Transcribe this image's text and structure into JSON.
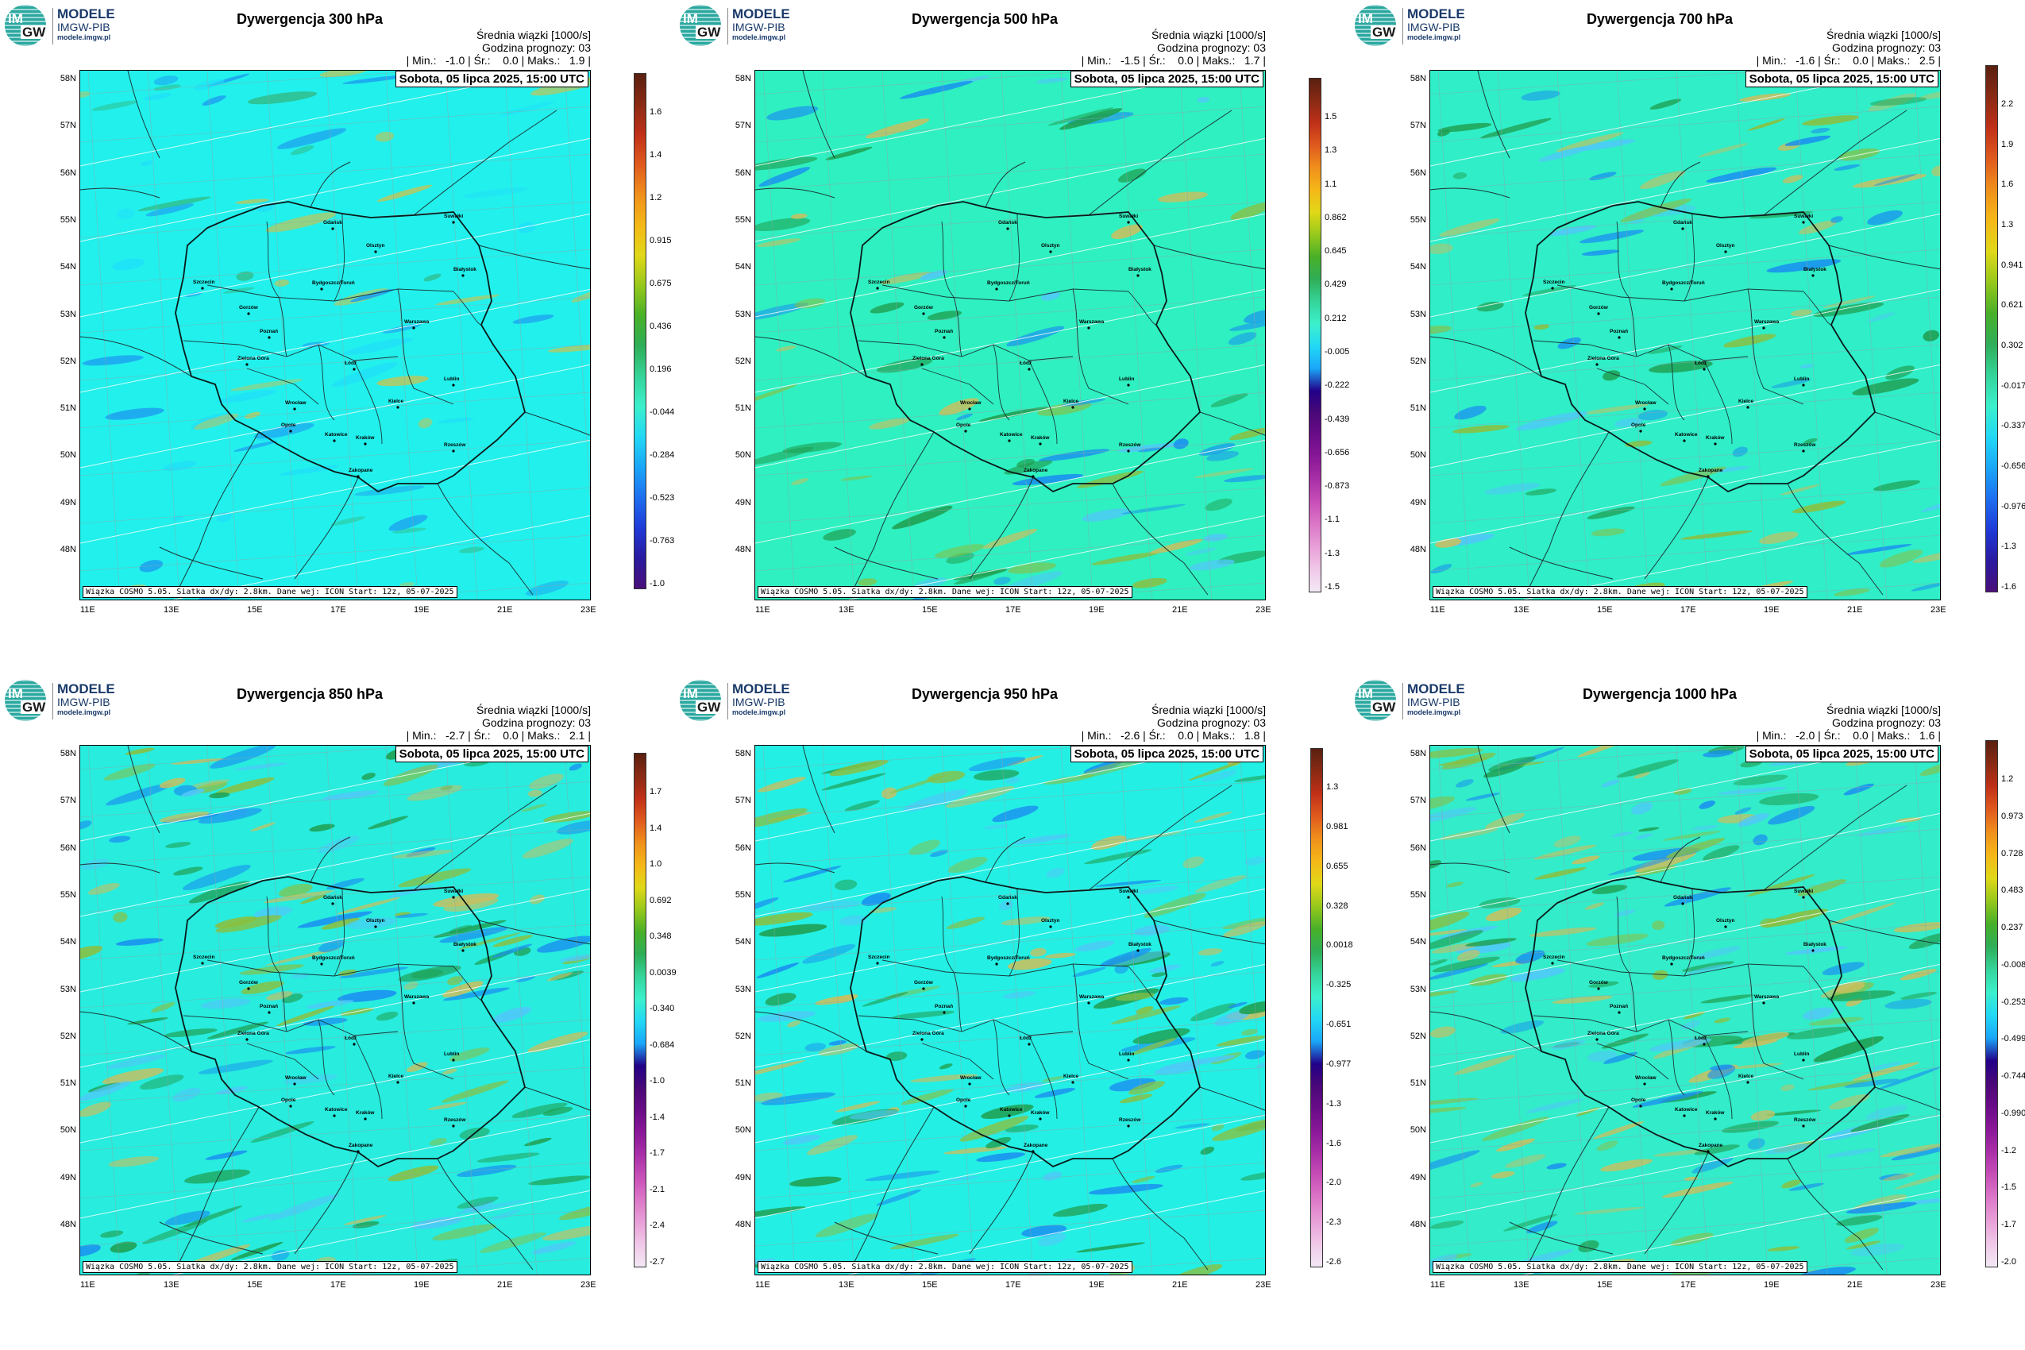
{
  "logo": {
    "line1": "MODELE",
    "line2": "IMGW-PIB",
    "line3": "modele.imgw.pl",
    "mark_top": "IM",
    "mark_bottom": "GW"
  },
  "common": {
    "mean_label": "Średnia wiązki [1000/s]",
    "forecast_label": "Godzina prognozy: 03",
    "date": "Sobota, 05 lipca 2025, 15:00 UTC",
    "footer": "Wiązka COSMO 5.05. Siatka dx/dy: 2.8km. Dane wej: ICON Start: 12z, 05-07-2025",
    "lat_labels": [
      "58N",
      "57N",
      "56N",
      "55N",
      "54N",
      "53N",
      "52N",
      "51N",
      "50N",
      "49N",
      "48N"
    ],
    "lon_labels": [
      "11E",
      "13E",
      "15E",
      "17E",
      "19E",
      "21E",
      "23E"
    ]
  },
  "cities": [
    "Gdańsk",
    "Olsztyn",
    "Suwałki",
    "Białystok",
    "Szczecin",
    "Bydgoszcz/Toruń",
    "Gorzów",
    "Poznań",
    "Warszawa",
    "Zielona Góra",
    "Łódź",
    "Lublin",
    "Wrocław",
    "Kielce",
    "Opole",
    "Katowice",
    "Kraków",
    "Rzeszów",
    "Zakopane"
  ],
  "colors": {
    "fill_300": "#22f0ec",
    "fill_500": "#2ff0c0",
    "fill_700": "#2feec8",
    "fill_850": "#27ecde",
    "fill_950": "#24efe4",
    "fill_1000": "#32ecca",
    "colorbar": [
      "#4a0f7a",
      "#2a1aa0",
      "#1f3ad8",
      "#1e6ff0",
      "#1aa6f8",
      "#22d8f5",
      "#3cf0cc",
      "#35d49a",
      "#2fae58",
      "#48b028",
      "#96c81c",
      "#e0d818",
      "#f5b818",
      "#f0901c",
      "#e05a1e",
      "#c03018",
      "#8a2a14",
      "#5a2010"
    ],
    "colorbar_pink": [
      "#f2e8f4",
      "#f0c8e8",
      "#e8a0d8",
      "#dc78c8",
      "#c850b8",
      "#aa30a8",
      "#8a1898",
      "#6a0c88",
      "#4a0878",
      "#220088"
    ]
  },
  "panels": [
    {
      "title": "Dywergencja 300 hPa",
      "stats": "| Min.:   -1.0 | Śr.:    0.0 | Maks.:   1.9 |",
      "cbar_labels": [
        "1.6",
        "1.4",
        "1.2",
        "0.915",
        "0.675",
        "0.436",
        "0.196",
        "-0.044",
        "-0.284",
        "-0.523",
        "-0.763",
        "-1.0"
      ],
      "pink": false
    },
    {
      "title": "Dywergencja 500 hPa",
      "stats": "| Min.:   -1.5 | Śr.:    0.0 | Maks.:   1.7 |",
      "cbar_labels": [
        "1.5",
        "1.3",
        "1.1",
        "0.862",
        "0.645",
        "0.429",
        "0.212",
        "-0.005",
        "-0.222",
        "-0.439",
        "-0.656",
        "-0.873",
        "-1.1",
        "-1.3",
        "-1.5"
      ],
      "pink": true
    },
    {
      "title": "Dywergencja 700 hPa",
      "stats": "| Min.:   -1.6 | Śr.:    0.0 | Maks.:   2.5 |",
      "cbar_labels": [
        "2.2",
        "1.9",
        "1.6",
        "1.3",
        "0.941",
        "0.621",
        "0.302",
        "-0.017",
        "-0.337",
        "-0.656",
        "-0.976",
        "-1.3",
        "-1.6"
      ],
      "pink": false
    },
    {
      "title": "Dywergencja 850 hPa",
      "stats": "| Min.:   -2.7 | Śr.:    0.0 | Maks.:   2.1 |",
      "cbar_labels": [
        "1.7",
        "1.4",
        "1.0",
        "0.692",
        "0.348",
        "0.0039",
        "-0.340",
        "-0.684",
        "-1.0",
        "-1.4",
        "-1.7",
        "-2.1",
        "-2.4",
        "-2.7"
      ],
      "pink": true
    },
    {
      "title": "Dywergencja 950 hPa",
      "stats": "| Min.:   -2.6 | Śr.:    0.0 | Maks.:   1.8 |",
      "cbar_labels": [
        "1.3",
        "0.981",
        "0.655",
        "0.328",
        "0.0018",
        "-0.325",
        "-0.651",
        "-0.977",
        "-1.3",
        "-1.6",
        "-2.0",
        "-2.3",
        "-2.6"
      ],
      "pink": true
    },
    {
      "title": "Dywergencja 1000 hPa",
      "stats": "| Min.:   -2.0 | Śr.:    0.0 | Maks.:   1.6 |",
      "cbar_labels": [
        "1.2",
        "0.973",
        "0.728",
        "0.483",
        "0.237",
        "-0.008",
        "-0.253",
        "-0.499",
        "-0.744",
        "-0.990",
        "-1.2",
        "-1.5",
        "-1.7",
        "-2.0"
      ],
      "pink": true
    }
  ]
}
